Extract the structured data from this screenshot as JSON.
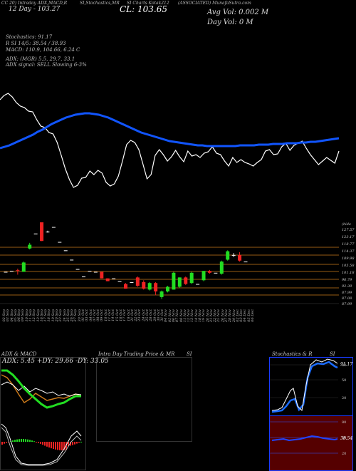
{
  "header": {
    "line1_left": "CC 20) Intraday ADX,MACD,R",
    "line1_mid": "SI,Stochastics,MR",
    "line1_right": "SI Charts Kotak212",
    "line1_far": "(ASSOCIATED) MunafaSutra.com",
    "line2_left": "12 Day - 103.27",
    "close_label": "CL: 103.65",
    "avg_vol": "Avg Vol: 0.002  M",
    "day_vol": "Day Vol: 0  M",
    "stoch_label": "Stochastics: 91.17",
    "rsi_label": "R                  SI 14/5: 38.54 / 38.93",
    "macd_label": "MACD: 110.9, 104.66, 6.24  C",
    "adx_label": "ADX:                           (MGR) 5.5, 29.7, 33.1",
    "adx_signal": "ADX  signal: SELL  Slowing 6-3%"
  },
  "price_axis": [
    "(hide",
    "127.57",
    "123.17",
    "118.77",
    "114.37",
    "109.98",
    "105.58",
    "101.18",
    "96.79",
    "92.39",
    "87.99",
    "87.08",
    "87.99"
  ],
  "dates": [
    "02 Sep",
    "03 Sep",
    "04 Sep",
    "05 Sep",
    "06 Sep",
    "09 Sep",
    "10 Sep",
    "11 Sep",
    "12 Sep",
    "13 Sep",
    "16 Sep",
    "17 Sep",
    "18 Sep",
    "19 Sep",
    "20 Sep",
    "23 Sep",
    "24 Sep",
    "25 Sep",
    "26 Sep",
    "27 Sep",
    "30 Sep",
    "01 Oct",
    "03 Oct",
    "04 Oct",
    "07 Oct",
    "08 Oct",
    "09 Oct",
    "10 Oct",
    "11 Oct",
    "14 Oct",
    "15 Oct",
    "16 Oct",
    "17 Oct",
    "18 Oct",
    "21 Oct",
    "22 Oct",
    "23 Oct",
    "24 Oct",
    "25 Oct",
    "28 Oct",
    "29 Oct",
    "30 Oct",
    "31 Oct",
    "04 Nov",
    "05 Nov",
    "06 Nov",
    "07 Nov",
    "08 Nov",
    "11 Nov",
    "12 Nov",
    "13 Nov",
    "14 Nov",
    "18 Nov",
    "19 Nov",
    "20 Nov",
    "21 Nov",
    "22 Nov",
    "25 Nov",
    "26 Nov",
    "27 Nov",
    "28 Nov",
    "29 Nov",
    "02 Dec",
    "03 Dec",
    "04 Dec",
    "05 Dec",
    "06 Dec"
  ],
  "panels": {
    "adx_title": "ADX  & MACD",
    "adx_values": "ADX: 5.45  +DY: 29.66  -DY: 33.05",
    "mri_title": "Intra  Day Trading Price  & MR",
    "mri_title2": "SI",
    "stoch_title": "Stochastics & R",
    "stoch_title2": "SI",
    "stoch_ticks": [
      "80",
      "50",
      "20"
    ],
    "rsi_ticks": [
      "80",
      "50",
      "20"
    ],
    "stoch_values": "91.17",
    "rsi_values": "38.54"
  },
  "colors": {
    "up": "#22dd22",
    "down": "#ee2222",
    "ma": "#1155ff",
    "price": "#ffffff",
    "orange": "#cc7a1a"
  },
  "chart_data": {
    "type": "candlestick",
    "title": "",
    "ylabel": "",
    "ylim": [
      85,
      130
    ],
    "candles": [
      {
        "o": 103.5,
        "c": 103.5,
        "h": 103.5,
        "l": 103.5
      },
      {
        "o": 104.0,
        "c": 104.0,
        "h": 104.0,
        "l": 104.0
      },
      {
        "o": 104.5,
        "c": 104.3,
        "h": 105.2,
        "l": 102.0
      },
      {
        "o": 103.5,
        "c": 108.5,
        "h": 109.0,
        "l": 103.5
      },
      {
        "o": 116.0,
        "c": 118.0,
        "h": 119.0,
        "l": 115.5
      },
      {
        "o": 124.0,
        "c": 124.0,
        "h": 124.0,
        "l": 124.0
      },
      {
        "o": 130.0,
        "c": 120.0,
        "h": 130.0,
        "l": 120.0
      },
      {
        "o": 125.0,
        "c": 125.0,
        "h": 125.5,
        "l": 124.5
      },
      {
        "o": 127.5,
        "c": 127.5,
        "h": 127.5,
        "l": 127.5
      },
      {
        "o": 119.5,
        "c": 119.5,
        "h": 119.5,
        "l": 119.5
      },
      {
        "o": 115.0,
        "c": 115.0,
        "h": 115.0,
        "l": 115.0
      },
      {
        "o": 110.0,
        "c": 110.0,
        "h": 110.0,
        "l": 110.0
      },
      {
        "o": 105.0,
        "c": 105.0,
        "h": 105.0,
        "l": 105.0
      },
      {
        "o": 101.0,
        "c": 101.0,
        "h": 101.0,
        "l": 101.0
      },
      {
        "o": 104.0,
        "c": 104.0,
        "h": 104.0,
        "l": 104.0
      },
      {
        "o": 103.5,
        "c": 103.5,
        "h": 103.5,
        "l": 103.5
      },
      {
        "o": 103.5,
        "c": 100.0,
        "h": 103.5,
        "l": 100.0
      },
      {
        "o": 100.0,
        "c": 98.5,
        "h": 100.0,
        "l": 98.5
      },
      {
        "o": 100.0,
        "c": 100.0,
        "h": 100.0,
        "l": 100.0
      },
      {
        "o": 98.5,
        "c": 98.5,
        "h": 98.5,
        "l": 98.5
      },
      {
        "o": 97.0,
        "c": 94.5,
        "h": 97.5,
        "l": 94.5
      },
      {
        "o": 98.0,
        "c": 98.0,
        "h": 98.0,
        "l": 98.0
      },
      {
        "o": 100.5,
        "c": 96.0,
        "h": 101.0,
        "l": 95.5
      },
      {
        "o": 98.0,
        "c": 94.5,
        "h": 99.0,
        "l": 94.0
      },
      {
        "o": 94.0,
        "c": 97.5,
        "h": 98.0,
        "l": 93.5
      },
      {
        "o": 97.5,
        "c": 93.0,
        "h": 98.0,
        "l": 91.0
      },
      {
        "o": 90.0,
        "c": 93.0,
        "h": 93.5,
        "l": 89.0
      },
      {
        "o": 93.0,
        "c": 95.5,
        "h": 96.0,
        "l": 92.5
      },
      {
        "o": 94.0,
        "c": 103.0,
        "h": 103.5,
        "l": 94.0
      },
      {
        "o": 95.5,
        "c": 100.5,
        "h": 100.5,
        "l": 95.0
      },
      {
        "o": 100.5,
        "c": 97.0,
        "h": 101.0,
        "l": 96.5
      },
      {
        "o": 97.5,
        "c": 103.0,
        "h": 103.5,
        "l": 97.0
      },
      {
        "o": 97.0,
        "c": 97.0,
        "h": 97.0,
        "l": 97.0
      },
      {
        "o": 99.0,
        "c": 104.0,
        "h": 104.0,
        "l": 98.5
      },
      {
        "o": 104.0,
        "c": 103.0,
        "h": 104.5,
        "l": 102.5
      },
      {
        "o": 103.0,
        "c": 103.0,
        "h": 103.0,
        "l": 103.0
      },
      {
        "o": 102.5,
        "c": 109.0,
        "h": 109.5,
        "l": 102.0
      },
      {
        "o": 110.0,
        "c": 114.5,
        "h": 115.0,
        "l": 109.5
      },
      {
        "o": 112.5,
        "c": 112.5,
        "h": 113.5,
        "l": 111.5
      },
      {
        "o": 112.5,
        "c": 109.5,
        "h": 114.0,
        "l": 109.0
      },
      {
        "o": 109.0,
        "c": 109.0,
        "h": 109.0,
        "l": 109.0
      }
    ],
    "price_line": [
      40,
      34,
      31,
      36,
      44,
      49,
      51,
      56,
      57,
      68,
      77,
      79,
      86,
      88,
      100,
      118,
      137,
      152,
      163,
      160,
      150,
      149,
      140,
      145,
      139,
      143,
      156,
      161,
      158,
      147,
      126,
      103,
      97,
      100,
      110,
      130,
      151,
      145,
      118,
      110,
      117,
      126,
      120,
      111,
      120,
      127,
      112,
      119,
      117,
      121,
      115,
      113,
      106,
      115,
      117,
      126,
      133,
      121,
      128,
      124,
      128,
      130,
      133,
      128,
      124,
      112,
      110,
      117,
      116,
      106,
      101,
      111,
      104,
      101,
      98,
      108,
      117,
      124,
      131,
      126,
      121,
      125,
      129,
      112
    ],
    "ma_line": [
      108,
      106,
      104,
      101,
      98,
      95,
      92,
      89,
      85,
      82,
      78,
      74,
      71,
      68,
      65,
      63,
      61,
      60,
      59,
      59,
      60,
      61,
      63,
      65,
      68,
      71,
      74,
      77,
      80,
      83,
      86,
      88,
      90,
      92,
      94,
      96,
      98,
      99,
      100,
      101,
      102,
      103,
      104,
      104,
      105,
      105,
      105,
      105,
      105,
      105,
      105,
      104,
      104,
      104,
      104,
      103,
      103,
      103,
      102,
      102,
      102,
      101,
      101,
      101,
      100,
      100,
      99,
      99,
      98,
      97,
      96,
      95,
      94
    ]
  }
}
